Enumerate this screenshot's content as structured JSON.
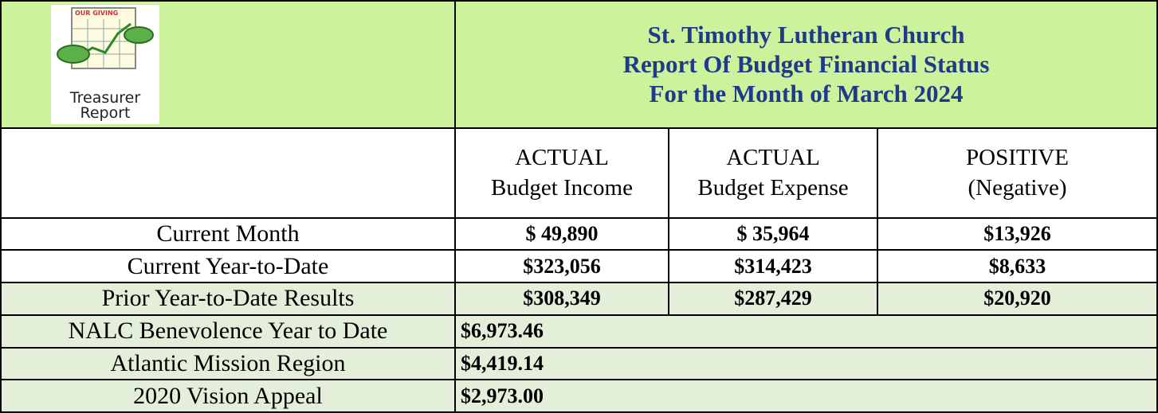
{
  "header": {
    "logo": {
      "caption": "OUR GIVING",
      "text": [
        "Treasurer",
        "Report"
      ]
    },
    "title": [
      "St. Timothy Lutheran Church",
      "Report Of Budget Financial Status",
      "For the Month of March 2024"
    ]
  },
  "table": {
    "columns": [
      [
        "ACTUAL",
        "Budget Income"
      ],
      [
        "ACTUAL",
        "Budget Expense"
      ],
      [
        "POSITIVE",
        "(Negative)"
      ]
    ],
    "rows": [
      {
        "label": "Current Month",
        "values": [
          "$ 49,890",
          "$ 35,964",
          "$13,926"
        ]
      },
      {
        "label": "Current Year-to-Date",
        "values": [
          "$323,056",
          "$314,423",
          "$8,633"
        ]
      },
      {
        "label": "Prior Year-to-Date Results",
        "values": [
          "$308,349",
          "$287,429",
          "$20,920"
        ]
      }
    ],
    "other_rows": [
      {
        "label": "NALC Benevolence Year to Date",
        "value": "$6,973.46"
      },
      {
        "label": "Atlantic Mission Region",
        "value": "$4,419.14"
      },
      {
        "label": "2020 Vision Appeal",
        "value": "$2,973.00"
      }
    ]
  }
}
